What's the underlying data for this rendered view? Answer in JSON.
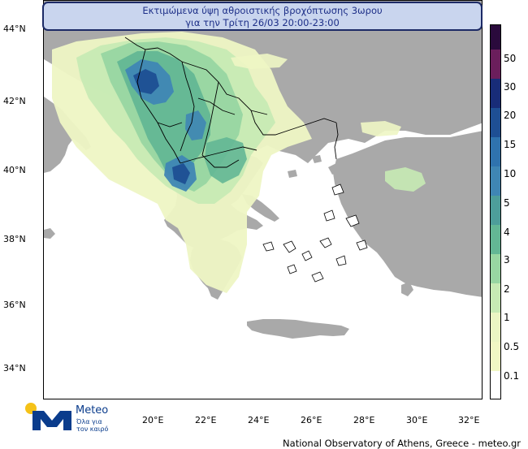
{
  "title": {
    "line1": "Εκτιμώμενα ύψη αθροιστικής βροχόπτωσης 3ωρου",
    "line2": "για την Τρίτη 26/03 20:00-23:00"
  },
  "axes": {
    "lat_labels": [
      "44°N",
      "42°N",
      "40°N",
      "38°N",
      "36°N",
      "34°N"
    ],
    "lon_labels": [
      "20°E",
      "22°E",
      "24°E",
      "26°E",
      "28°E",
      "30°E",
      "32°E"
    ]
  },
  "colorbar": {
    "labels": [
      "50",
      "30",
      "20",
      "15",
      "10",
      "5",
      "4",
      "3",
      "2",
      "1",
      "0.5",
      "0.1"
    ],
    "colors": [
      "#2a0a3c",
      "#6b1e5c",
      "#182c78",
      "#1e4f94",
      "#2f73ae",
      "#3f86b4",
      "#4d9e9a",
      "#63b795",
      "#98d6a2",
      "#c7eab4",
      "#ebf5c3",
      "#f1f7c4",
      "#ffffff"
    ]
  },
  "logo": {
    "brand": "Meteo",
    "tagline_1": "Όλα για",
    "tagline_2": "τον καιρό",
    "colors": {
      "sun": "#f5c218",
      "mark": "#0a3c8c"
    }
  },
  "footer": "National Observatory of Athens, Greece - meteo.gr",
  "map_colors": {
    "sea": "#ffffff",
    "land": "#a9a9a9",
    "border": "#000000"
  }
}
